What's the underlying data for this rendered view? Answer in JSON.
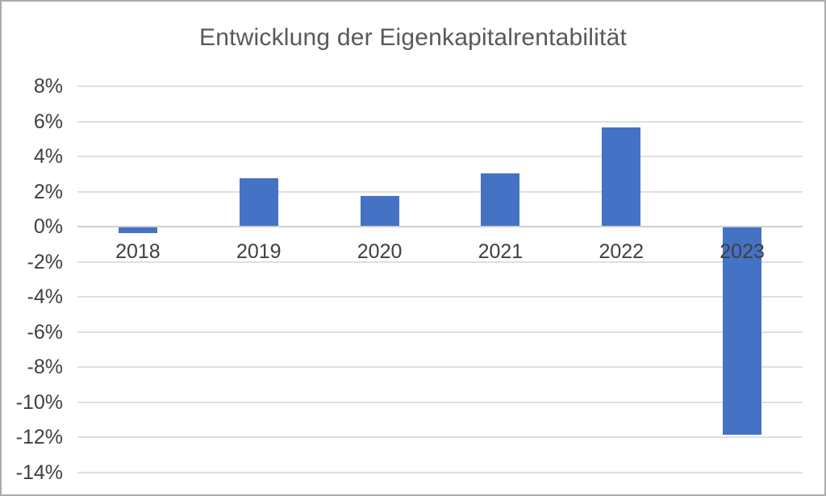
{
  "title": "Entwicklung der Eigenkapitalrentabilität",
  "chart_data": {
    "type": "bar",
    "title": "Entwicklung der Eigenkapitalrentabilität",
    "categories": [
      "2018",
      "2019",
      "2020",
      "2021",
      "2022",
      "2023"
    ],
    "values": [
      -0.3,
      2.7,
      1.7,
      3.0,
      5.6,
      -11.8
    ],
    "unit": "%",
    "xlabel": "",
    "ylabel": "",
    "ylim": [
      -14,
      8
    ],
    "ytick_step": 2,
    "ytick_labels": [
      "8%",
      "6%",
      "4%",
      "2%",
      "0%",
      "-2%",
      "-4%",
      "-6%",
      "-8%",
      "-10%",
      "-12%",
      "-14%"
    ],
    "grid": true,
    "legend": false,
    "colors": {
      "bar": "#4472C4",
      "title_text": "#595959",
      "axis_label_text": "#404040",
      "gridline": "#DFDFDF",
      "zero_axis_line": "#CFCFCF",
      "frame_border": "#ABABAB",
      "background": "#FFFFFF"
    }
  }
}
